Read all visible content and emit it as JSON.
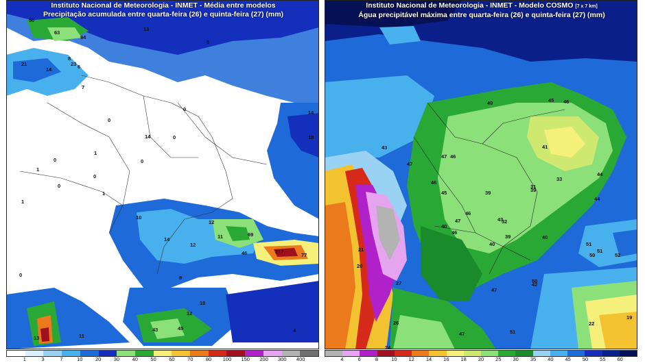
{
  "left": {
    "title_line1": "Instituto Nacional de Meteorologia - INMET - Média entre modelos",
    "title_line2": "Precipitação acumulada entre quarta-feira (26) e quinta-feira (27) (mm)",
    "colorbar_ticks": [
      "1",
      "3",
      "7",
      "10",
      "20",
      "30",
      "40",
      "50",
      "60",
      "70",
      "80",
      "100",
      "150",
      "200",
      "300",
      "400"
    ],
    "colorbar_colors": [
      "#ffffff",
      "#d9f0ff",
      "#9ad2f5",
      "#48b0ec",
      "#1d6ad8",
      "#152fbd",
      "#8be07a",
      "#2aa836",
      "#f4f079",
      "#f2c230",
      "#ea7a1c",
      "#d62a1a",
      "#a1101e",
      "#b021c9",
      "#e6a3f0",
      "#b3b3b3",
      "#707070"
    ],
    "values": [
      "50",
      "63",
      "94",
      "13",
      "21",
      "14",
      "23",
      "5",
      "8",
      "6",
      "7",
      "0",
      "0",
      "0",
      "14",
      "1",
      "0",
      "0",
      "1",
      "0",
      "0",
      "1",
      "1",
      "0",
      "10",
      "14",
      "12",
      "12",
      "69",
      "217",
      "77",
      "8",
      "11",
      "10",
      "12",
      "43",
      "45",
      "11",
      "14",
      "18",
      "46",
      "4",
      "13"
    ]
  },
  "right": {
    "title_line1": "Instituto Nacional de Meteorologia - INMET - Modelo COSMO",
    "title_note": "[7 x 7 km]",
    "title_line2": "Água precipitável máxima entre quarta-feira (26) e quinta-feira (27) (mm)",
    "colorbar_ticks": [
      "4",
      "6",
      "8",
      "10",
      "12",
      "14",
      "16",
      "18",
      "20",
      "25",
      "30",
      "35",
      "40",
      "45",
      "50",
      "55",
      "60"
    ],
    "colorbar_colors": [
      "#b3b3b3",
      "#e6a3f0",
      "#b021c9",
      "#a1101e",
      "#d62a1a",
      "#ea7a1c",
      "#f2c230",
      "#f4f079",
      "#cfe970",
      "#8be07a",
      "#2aa836",
      "#1a8a2a",
      "#9ad2f5",
      "#48b0ec",
      "#1d6ad8",
      "#152fbd",
      "#0a1f8a",
      "#061055"
    ],
    "values": [
      "49",
      "45",
      "46",
      "41",
      "43",
      "47",
      "47",
      "46",
      "46",
      "45",
      "39",
      "39",
      "31",
      "33",
      "32",
      "44",
      "44",
      "47",
      "46",
      "40",
      "43",
      "40",
      "39",
      "40",
      "46",
      "21",
      "20",
      "27",
      "26",
      "24",
      "50",
      "51",
      "51",
      "50",
      "52",
      "22",
      "19",
      "47",
      "51",
      "47",
      "42"
    ]
  }
}
